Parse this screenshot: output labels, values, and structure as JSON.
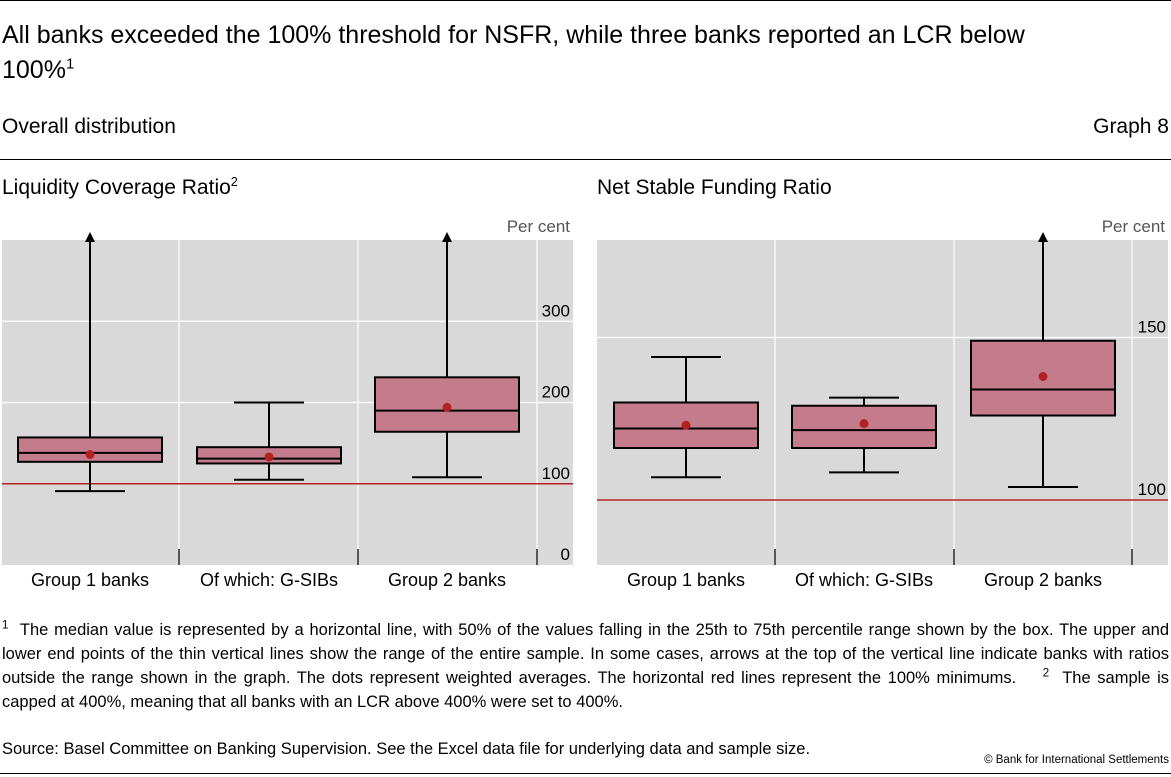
{
  "title": {
    "text": "All banks exceeded the 100% threshold for NSFR, while three banks reported an LCR below 100%",
    "note_ref": "1"
  },
  "subtitle": "Overall distribution",
  "graph_label": "Graph 8",
  "colors": {
    "panel_bg": "#d9d9d9",
    "box_fill": "#c47c8c",
    "threshold_line": "#b22222",
    "mean_dot": "#b22222",
    "gridline": "#ffffff"
  },
  "chart_data": [
    {
      "type": "boxplot",
      "title": "Liquidity Coverage Ratio",
      "title_note_ref": "2",
      "unit_label": "Per cent",
      "ylim": [
        0,
        400
      ],
      "yticks": [
        0,
        100,
        200,
        300
      ],
      "threshold": 100,
      "categories": [
        "Group 1 banks",
        "Of which: G-SIBs",
        "Group 2 banks"
      ],
      "boxes": [
        {
          "min": 91,
          "q1": 127,
          "median": 138,
          "q3": 157,
          "max": 400,
          "mean": 136,
          "arrow": true
        },
        {
          "min": 105,
          "q1": 125,
          "median": 131,
          "q3": 145,
          "max": 200,
          "mean": 133,
          "arrow": false
        },
        {
          "min": 108,
          "q1": 164,
          "median": 190,
          "q3": 231,
          "max": 400,
          "mean": 194,
          "arrow": true
        }
      ]
    },
    {
      "type": "boxplot",
      "title": "Net Stable Funding Ratio",
      "unit_label": "Per cent",
      "ylim": [
        80,
        180
      ],
      "yticks": [
        100,
        150
      ],
      "threshold": 100,
      "categories": [
        "Group 1 banks",
        "Of which: G-SIBs",
        "Group 2 banks"
      ],
      "boxes": [
        {
          "min": 107,
          "q1": 116,
          "median": 122,
          "q3": 130,
          "max": 144,
          "mean": 123,
          "arrow": false
        },
        {
          "min": 108.5,
          "q1": 116,
          "median": 121.5,
          "q3": 129,
          "max": 131.5,
          "mean": 123.5,
          "arrow": false
        },
        {
          "min": 104,
          "q1": 126,
          "median": 134,
          "q3": 149,
          "max": 180,
          "mean": 138,
          "arrow": true
        }
      ]
    }
  ],
  "footnotes": [
    {
      "ref": "1",
      "text": "The median value is represented by a horizontal line, with 50% of the values falling in the 25th to 75th percentile range shown by the box. The upper and lower end points of the thin vertical lines show the range of the entire sample. In some cases, arrows at the top of the vertical line indicate banks with ratios outside the range shown in the graph. The dots represent weighted averages. The horizontal red lines represent the 100% minimums."
    },
    {
      "ref": "2",
      "text": "The sample is capped at 400%, meaning that all banks with an LCR above 400% were set to 400%."
    }
  ],
  "source": "Source: Basel Committee on Banking Supervision. See the Excel data file for underlying data and sample size.",
  "copyright": "© Bank for International Settlements"
}
